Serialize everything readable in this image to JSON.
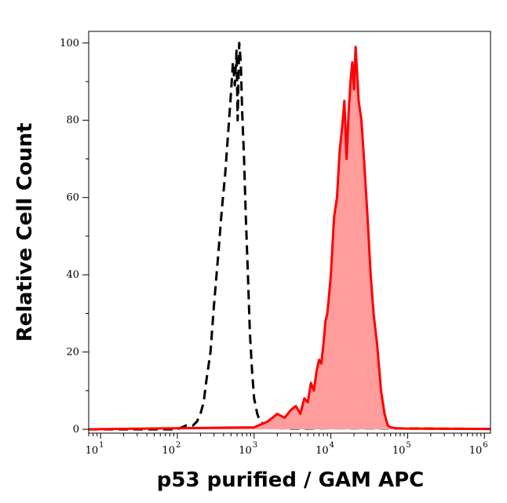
{
  "chart_data": {
    "type": "area",
    "title": "",
    "xlabel": "p53 purified / GAM APC",
    "ylabel": "Relative Cell Count",
    "xscale": "log",
    "xlim": [
      7,
      1200000
    ],
    "ylim": [
      -1,
      103
    ],
    "x_ticks": [
      {
        "value": 10,
        "base": "10",
        "exp": "1"
      },
      {
        "value": 100,
        "base": "10",
        "exp": "2"
      },
      {
        "value": 1000,
        "base": "10",
        "exp": "3"
      },
      {
        "value": 10000,
        "base": "10",
        "exp": "4"
      },
      {
        "value": 100000,
        "base": "10",
        "exp": "5"
      },
      {
        "value": 1000000,
        "base": "10",
        "exp": "6"
      }
    ],
    "y_ticks": [
      {
        "value": 0,
        "label": "0"
      },
      {
        "value": 20,
        "label": "20"
      },
      {
        "value": 40,
        "label": "40"
      },
      {
        "value": 60,
        "label": "60"
      },
      {
        "value": 80,
        "label": "80"
      },
      {
        "value": 100,
        "label": "100"
      }
    ],
    "grid": false,
    "series": [
      {
        "color": "#000000",
        "style": "dashed",
        "fill": "none",
        "x": [
          7,
          100,
          130,
          160,
          180,
          200,
          220,
          240,
          270,
          300,
          340,
          380,
          420,
          460,
          500,
          530,
          560,
          590,
          610,
          640,
          670,
          700,
          740,
          780,
          830,
          880,
          940,
          1000,
          1100,
          1200,
          1400,
          1700,
          2200,
          3000,
          5000,
          10000,
          1200000
        ],
        "y": [
          0,
          0,
          1,
          1,
          2,
          4,
          7,
          13,
          20,
          32,
          45,
          57,
          66,
          77,
          87,
          95,
          89,
          98,
          80,
          100,
          95,
          82,
          70,
          55,
          40,
          25,
          15,
          8,
          4,
          2,
          1,
          0.5,
          0.3,
          0.2,
          0.2,
          0.3,
          0.1
        ]
      },
      {
        "color": "#ff0000",
        "style": "solid",
        "fill": "#ff9c9c",
        "x": [
          7,
          1000,
          1500,
          2000,
          2500,
          3000,
          3500,
          4000,
          4500,
          5000,
          5500,
          6000,
          6500,
          7000,
          7500,
          8000,
          8500,
          9000,
          9500,
          10000,
          11000,
          12000,
          13000,
          14000,
          15000,
          16000,
          17000,
          18000,
          19000,
          20000,
          21000,
          22000,
          23000,
          25000,
          27000,
          30000,
          33000,
          36000,
          40000,
          45000,
          50000,
          55000,
          60000,
          70000,
          90000,
          1200000
        ],
        "y": [
          0,
          0.5,
          2,
          4,
          3,
          5,
          6,
          4,
          8,
          7,
          12,
          10,
          15,
          18,
          17,
          22,
          28,
          30,
          35,
          40,
          55,
          60,
          72,
          78,
          85,
          70,
          82,
          90,
          95,
          88,
          99,
          92,
          85,
          80,
          70,
          55,
          40,
          30,
          22,
          10,
          4,
          1,
          0.5,
          0.3,
          0.2,
          0.1
        ]
      }
    ]
  }
}
